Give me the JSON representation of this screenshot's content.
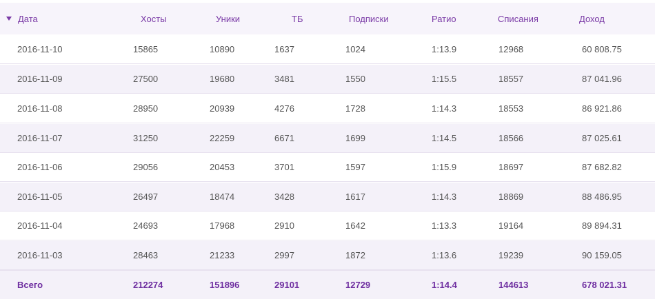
{
  "table": {
    "sort_icon": "triangle-down-icon",
    "accent_color": "#7a3aa6",
    "columns": [
      "Дата",
      "Хосты",
      "Уники",
      "ТБ",
      "Подписки",
      "Ратио",
      "Списания",
      "Доход"
    ],
    "rows": [
      [
        "2016-11-10",
        "15865",
        "10890",
        "1637",
        "1024",
        "1:13.9",
        "12968",
        "60 808.75"
      ],
      [
        "2016-11-09",
        "27500",
        "19680",
        "3481",
        "1550",
        "1:15.5",
        "18557",
        "87 041.96"
      ],
      [
        "2016-11-08",
        "28950",
        "20939",
        "4276",
        "1728",
        "1:14.3",
        "18553",
        "86 921.86"
      ],
      [
        "2016-11-07",
        "31250",
        "22259",
        "6671",
        "1699",
        "1:14.5",
        "18566",
        "87 025.61"
      ],
      [
        "2016-11-06",
        "29056",
        "20453",
        "3701",
        "1597",
        "1:15.9",
        "18697",
        "87 682.82"
      ],
      [
        "2016-11-05",
        "26497",
        "18474",
        "3428",
        "1617",
        "1:14.3",
        "18869",
        "88 486.95"
      ],
      [
        "2016-11-04",
        "24693",
        "17968",
        "2910",
        "1642",
        "1:13.3",
        "19164",
        "89 894.31"
      ],
      [
        "2016-11-03",
        "28463",
        "21233",
        "2997",
        "1872",
        "1:13.6",
        "19239",
        "90 159.05"
      ]
    ],
    "totals": [
      "Всего",
      "212274",
      "151896",
      "29101",
      "12729",
      "1:14.4",
      "144613",
      "678 021.31"
    ]
  }
}
